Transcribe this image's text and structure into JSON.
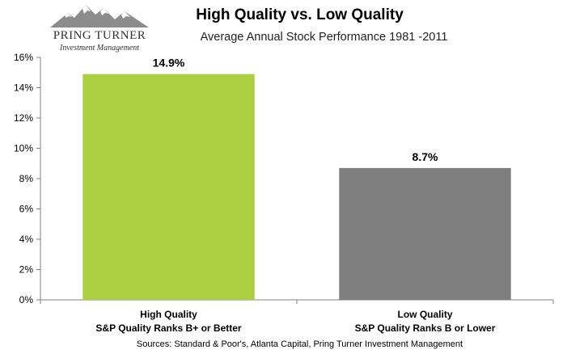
{
  "logo": {
    "name": "PRING TURNER",
    "tagline": "Investment Management"
  },
  "source": "Sources: Standard & Poor's, Atlanta Capital, Pring Turner Investment Management",
  "chart_data": {
    "type": "bar",
    "title": "High Quality vs. Low Quality",
    "subtitle": "Average Annual Stock Performance 1981 -2011",
    "categories": [
      [
        "High Quality",
        "S&P Quality Ranks B+ or Better"
      ],
      [
        "Low Quality",
        "S&P Quality Ranks B or Lower"
      ]
    ],
    "values": [
      14.9,
      8.7
    ],
    "data_labels": [
      "14.9%",
      "8.7%"
    ],
    "bar_colors": [
      "#aacf41",
      "#7f7f7f"
    ],
    "ylim": [
      0,
      16
    ],
    "yticks": [
      0,
      2,
      4,
      6,
      8,
      10,
      12,
      14,
      16
    ],
    "ytick_labels": [
      "0%",
      "2%",
      "4%",
      "6%",
      "8%",
      "10%",
      "12%",
      "14%",
      "16%"
    ],
    "grid": false,
    "legend": "none"
  }
}
